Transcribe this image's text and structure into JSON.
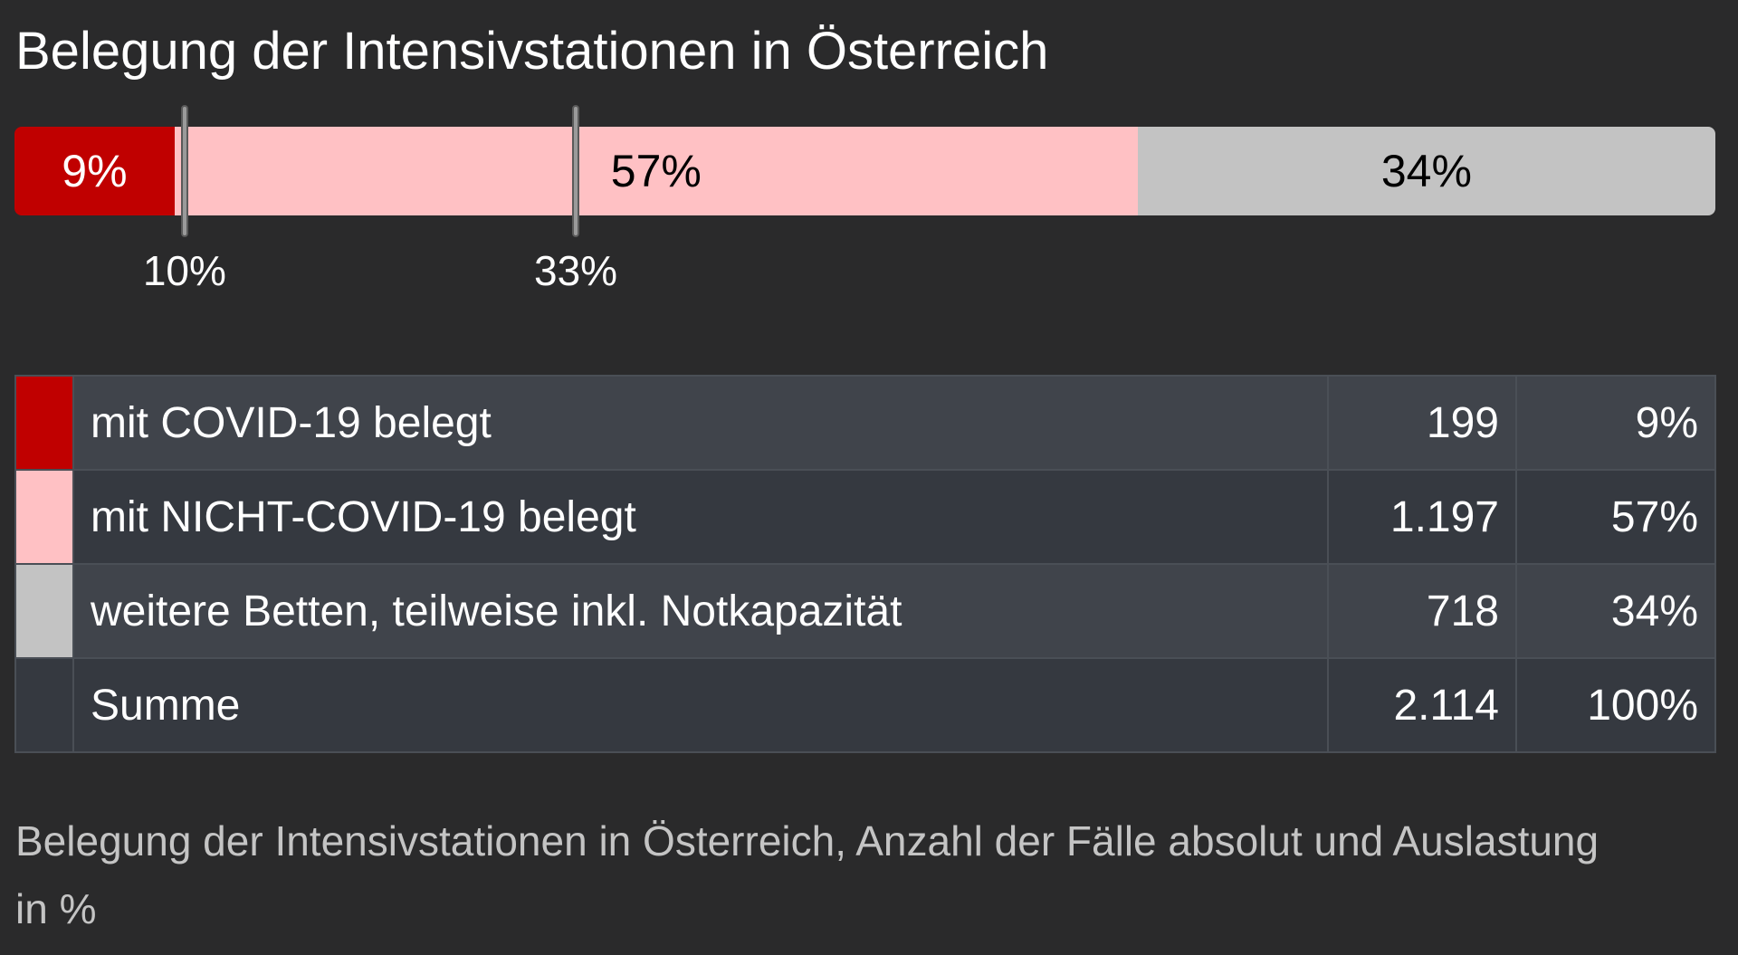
{
  "chart_data": {
    "type": "bar",
    "orientation": "horizontal-stacked",
    "title": "Belegung der Intensivstationen in Österreich",
    "segments": [
      {
        "name": "mit COVID-19 belegt",
        "value": 199,
        "percent": 9,
        "label": "9%",
        "color": "#c00000",
        "text_color": "#ffffff"
      },
      {
        "name": "mit NICHT-COVID-19 belegt",
        "value": 1197,
        "percent": 57,
        "label": "57%",
        "color": "#ffc1c4",
        "text_color": "#000000"
      },
      {
        "name": "weitere Betten, teilweise inkl. Notkapazität",
        "value": 718,
        "percent": 34,
        "label": "34%",
        "color": "#c3c3c3",
        "text_color": "#000000"
      }
    ],
    "thresholds": [
      {
        "percent": 10,
        "label": "10%"
      },
      {
        "percent": 33,
        "label": "33%"
      }
    ],
    "xlim": [
      0,
      100
    ]
  },
  "table": {
    "rows": [
      {
        "swatch": "#c00000",
        "label": "mit COVID-19 belegt",
        "count": "199",
        "percent": "9%"
      },
      {
        "swatch": "#ffc1c4",
        "label": "mit NICHT-COVID-19 belegt",
        "count": "1.197",
        "percent": "57%"
      },
      {
        "swatch": "#c3c3c3",
        "label": "weitere Betten, teilweise inkl. Notkapazität",
        "count": "718",
        "percent": "34%"
      }
    ],
    "total": {
      "label": "Summe",
      "count": "2.114",
      "percent": "100%"
    }
  },
  "caption": "Belegung der Intensivstationen in Österreich, Anzahl der Fälle absolut und Auslastung in %"
}
